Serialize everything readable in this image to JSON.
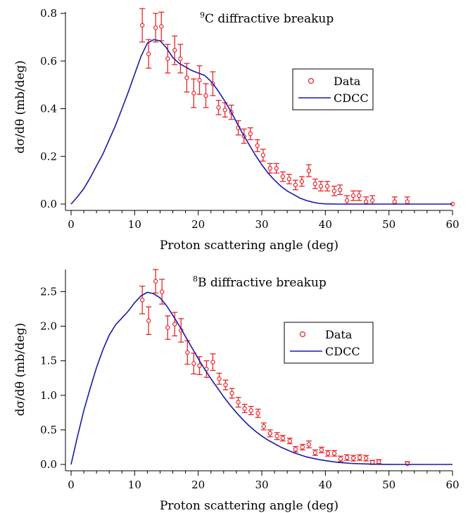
{
  "chart_data": [
    {
      "type": "scatter",
      "title_sup": "9",
      "title": "C diffractive breakup",
      "xlabel": "Proton scattering angle (deg)",
      "ylabel": "dσ/dθ (mb/deg)",
      "xlim": [
        0,
        60
      ],
      "ylim": [
        0,
        0.8
      ],
      "x_ticks": [
        0,
        10,
        20,
        30,
        40,
        50,
        60
      ],
      "y_ticks": [
        0.0,
        0.2,
        0.4,
        0.6,
        0.8
      ],
      "y_tick_labels": [
        "0.0",
        "0.2",
        "0.4",
        "0.6",
        "0.8"
      ],
      "grid": false,
      "legend_position": "right",
      "series": [
        {
          "name": "Data",
          "style": "markers-with-errorbars",
          "color": "#e8262b",
          "points": [
            {
              "x": 11.2,
              "y": 0.75,
              "err": 0.07
            },
            {
              "x": 12.2,
              "y": 0.63,
              "err": 0.06
            },
            {
              "x": 13.3,
              "y": 0.74,
              "err": 0.06
            },
            {
              "x": 14.2,
              "y": 0.745,
              "err": 0.06
            },
            {
              "x": 15.2,
              "y": 0.61,
              "err": 0.06
            },
            {
              "x": 16.3,
              "y": 0.645,
              "err": 0.06
            },
            {
              "x": 17.2,
              "y": 0.61,
              "err": 0.06
            },
            {
              "x": 18.2,
              "y": 0.53,
              "err": 0.06
            },
            {
              "x": 19.3,
              "y": 0.465,
              "err": 0.06
            },
            {
              "x": 20.2,
              "y": 0.52,
              "err": 0.06
            },
            {
              "x": 21.2,
              "y": 0.455,
              "err": 0.05
            },
            {
              "x": 22.3,
              "y": 0.505,
              "err": 0.05
            },
            {
              "x": 23.2,
              "y": 0.405,
              "err": 0.03
            },
            {
              "x": 24.2,
              "y": 0.395,
              "err": 0.03
            },
            {
              "x": 25.2,
              "y": 0.385,
              "err": 0.03
            },
            {
              "x": 26.3,
              "y": 0.32,
              "err": 0.03
            },
            {
              "x": 27.2,
              "y": 0.285,
              "err": 0.03
            },
            {
              "x": 28.2,
              "y": 0.295,
              "err": 0.025
            },
            {
              "x": 29.3,
              "y": 0.245,
              "err": 0.025
            },
            {
              "x": 30.2,
              "y": 0.205,
              "err": 0.025
            },
            {
              "x": 31.3,
              "y": 0.15,
              "err": 0.02
            },
            {
              "x": 32.3,
              "y": 0.15,
              "err": 0.02
            },
            {
              "x": 33.3,
              "y": 0.115,
              "err": 0.02
            },
            {
              "x": 34.3,
              "y": 0.105,
              "err": 0.02
            },
            {
              "x": 35.3,
              "y": 0.08,
              "err": 0.02
            },
            {
              "x": 36.3,
              "y": 0.095,
              "err": 0.02
            },
            {
              "x": 37.4,
              "y": 0.14,
              "err": 0.025
            },
            {
              "x": 38.4,
              "y": 0.085,
              "err": 0.02
            },
            {
              "x": 39.3,
              "y": 0.075,
              "err": 0.02
            },
            {
              "x": 40.3,
              "y": 0.075,
              "err": 0.02
            },
            {
              "x": 41.4,
              "y": 0.055,
              "err": 0.02
            },
            {
              "x": 42.3,
              "y": 0.06,
              "err": 0.02
            },
            {
              "x": 43.4,
              "y": 0.015,
              "err": 0.02
            },
            {
              "x": 44.4,
              "y": 0.035,
              "err": 0.02
            },
            {
              "x": 45.3,
              "y": 0.035,
              "err": 0.02
            },
            {
              "x": 46.4,
              "y": 0.01,
              "err": 0.02
            },
            {
              "x": 47.4,
              "y": 0.015,
              "err": 0.02
            },
            {
              "x": 50.9,
              "y": 0.01,
              "err": 0.02
            },
            {
              "x": 52.9,
              "y": 0.01,
              "err": 0.02
            },
            {
              "x": 60.0,
              "y": 0.0,
              "err": 0.0
            }
          ]
        },
        {
          "name": "CDCC",
          "style": "line",
          "color": "#1a1aa8",
          "points": [
            {
              "x": 0,
              "y": 0.0
            },
            {
              "x": 1,
              "y": 0.03
            },
            {
              "x": 2,
              "y": 0.065
            },
            {
              "x": 3,
              "y": 0.11
            },
            {
              "x": 4,
              "y": 0.16
            },
            {
              "x": 5,
              "y": 0.21
            },
            {
              "x": 6,
              "y": 0.27
            },
            {
              "x": 7,
              "y": 0.33
            },
            {
              "x": 8,
              "y": 0.4
            },
            {
              "x": 9,
              "y": 0.47
            },
            {
              "x": 10,
              "y": 0.545
            },
            {
              "x": 11,
              "y": 0.62
            },
            {
              "x": 12,
              "y": 0.675
            },
            {
              "x": 13,
              "y": 0.69
            },
            {
              "x": 14,
              "y": 0.685
            },
            {
              "x": 15,
              "y": 0.655
            },
            {
              "x": 16,
              "y": 0.615
            },
            {
              "x": 17,
              "y": 0.59
            },
            {
              "x": 18,
              "y": 0.575
            },
            {
              "x": 19,
              "y": 0.56
            },
            {
              "x": 20,
              "y": 0.55
            },
            {
              "x": 21,
              "y": 0.54
            },
            {
              "x": 22,
              "y": 0.515
            },
            {
              "x": 23,
              "y": 0.48
            },
            {
              "x": 24,
              "y": 0.44
            },
            {
              "x": 25,
              "y": 0.395
            },
            {
              "x": 26,
              "y": 0.345
            },
            {
              "x": 27,
              "y": 0.295
            },
            {
              "x": 28,
              "y": 0.25
            },
            {
              "x": 29,
              "y": 0.205
            },
            {
              "x": 30,
              "y": 0.165
            },
            {
              "x": 31,
              "y": 0.13
            },
            {
              "x": 32,
              "y": 0.1
            },
            {
              "x": 33,
              "y": 0.075
            },
            {
              "x": 34,
              "y": 0.055
            },
            {
              "x": 35,
              "y": 0.04
            },
            {
              "x": 36,
              "y": 0.025
            },
            {
              "x": 37,
              "y": 0.015
            },
            {
              "x": 38,
              "y": 0.008
            },
            {
              "x": 39,
              "y": 0.003
            },
            {
              "x": 40,
              "y": 0.001
            },
            {
              "x": 42,
              "y": 0.0
            },
            {
              "x": 60,
              "y": 0.0
            }
          ]
        }
      ]
    },
    {
      "type": "scatter",
      "title_sup": "8",
      "title": "B diffractive breakup",
      "xlabel": "Proton scattering angle (deg)",
      "ylabel": "dσ/dθ (mb/deg)",
      "xlim": [
        0,
        60
      ],
      "ylim": [
        0,
        2.8
      ],
      "x_ticks": [
        0,
        10,
        20,
        30,
        40,
        50,
        60
      ],
      "y_ticks": [
        0.0,
        0.5,
        1.0,
        1.5,
        2.0,
        2.5
      ],
      "y_tick_labels": [
        "0.0",
        "0.5",
        "1.0",
        "1.5",
        "2.0",
        "2.5"
      ],
      "grid": false,
      "legend_position": "right",
      "series": [
        {
          "name": "Data",
          "style": "markers-with-errorbars",
          "color": "#e8262b",
          "points": [
            {
              "x": 11.2,
              "y": 2.38,
              "err": 0.2
            },
            {
              "x": 12.2,
              "y": 2.08,
              "err": 0.2
            },
            {
              "x": 13.3,
              "y": 2.65,
              "err": 0.17
            },
            {
              "x": 14.3,
              "y": 2.5,
              "err": 0.18
            },
            {
              "x": 15.2,
              "y": 1.98,
              "err": 0.17
            },
            {
              "x": 16.3,
              "y": 2.03,
              "err": 0.17
            },
            {
              "x": 17.3,
              "y": 1.94,
              "err": 0.17
            },
            {
              "x": 18.3,
              "y": 1.62,
              "err": 0.17
            },
            {
              "x": 19.3,
              "y": 1.46,
              "err": 0.15
            },
            {
              "x": 20.2,
              "y": 1.43,
              "err": 0.13
            },
            {
              "x": 21.3,
              "y": 1.38,
              "err": 0.12
            },
            {
              "x": 22.3,
              "y": 1.48,
              "err": 0.12
            },
            {
              "x": 23.3,
              "y": 1.24,
              "err": 0.08
            },
            {
              "x": 24.3,
              "y": 1.15,
              "err": 0.07
            },
            {
              "x": 25.3,
              "y": 1.03,
              "err": 0.07
            },
            {
              "x": 26.3,
              "y": 0.9,
              "err": 0.07
            },
            {
              "x": 27.3,
              "y": 0.81,
              "err": 0.06
            },
            {
              "x": 28.3,
              "y": 0.78,
              "err": 0.06
            },
            {
              "x": 29.4,
              "y": 0.74,
              "err": 0.06
            },
            {
              "x": 30.3,
              "y": 0.55,
              "err": 0.05
            },
            {
              "x": 31.3,
              "y": 0.45,
              "err": 0.05
            },
            {
              "x": 32.4,
              "y": 0.41,
              "err": 0.05
            },
            {
              "x": 33.3,
              "y": 0.38,
              "err": 0.04
            },
            {
              "x": 34.4,
              "y": 0.34,
              "err": 0.04
            },
            {
              "x": 35.3,
              "y": 0.22,
              "err": 0.04
            },
            {
              "x": 36.4,
              "y": 0.25,
              "err": 0.04
            },
            {
              "x": 37.4,
              "y": 0.29,
              "err": 0.05
            },
            {
              "x": 38.4,
              "y": 0.17,
              "err": 0.04
            },
            {
              "x": 39.4,
              "y": 0.21,
              "err": 0.04
            },
            {
              "x": 40.4,
              "y": 0.16,
              "err": 0.04
            },
            {
              "x": 41.4,
              "y": 0.16,
              "err": 0.04
            },
            {
              "x": 42.4,
              "y": 0.08,
              "err": 0.04
            },
            {
              "x": 43.4,
              "y": 0.1,
              "err": 0.04
            },
            {
              "x": 44.4,
              "y": 0.09,
              "err": 0.04
            },
            {
              "x": 45.4,
              "y": 0.1,
              "err": 0.04
            },
            {
              "x": 46.4,
              "y": 0.09,
              "err": 0.04
            },
            {
              "x": 47.4,
              "y": 0.03,
              "err": 0.03
            },
            {
              "x": 48.4,
              "y": 0.04,
              "err": 0.03
            },
            {
              "x": 52.9,
              "y": 0.01,
              "err": 0.03
            }
          ]
        },
        {
          "name": "CDCC",
          "style": "line",
          "color": "#1a1aa8",
          "points": [
            {
              "x": 0,
              "y": 0.0
            },
            {
              "x": 1,
              "y": 0.4
            },
            {
              "x": 2,
              "y": 0.78
            },
            {
              "x": 3,
              "y": 1.1
            },
            {
              "x": 4,
              "y": 1.4
            },
            {
              "x": 5,
              "y": 1.66
            },
            {
              "x": 6,
              "y": 1.87
            },
            {
              "x": 7,
              "y": 2.02
            },
            {
              "x": 8,
              "y": 2.12
            },
            {
              "x": 9,
              "y": 2.22
            },
            {
              "x": 10,
              "y": 2.34
            },
            {
              "x": 11,
              "y": 2.44
            },
            {
              "x": 12,
              "y": 2.49
            },
            {
              "x": 13,
              "y": 2.47
            },
            {
              "x": 14,
              "y": 2.41
            },
            {
              "x": 15,
              "y": 2.3
            },
            {
              "x": 16,
              "y": 2.16
            },
            {
              "x": 17,
              "y": 2.01
            },
            {
              "x": 18,
              "y": 1.85
            },
            {
              "x": 19,
              "y": 1.69
            },
            {
              "x": 20,
              "y": 1.53
            },
            {
              "x": 21,
              "y": 1.38
            },
            {
              "x": 22,
              "y": 1.24
            },
            {
              "x": 23,
              "y": 1.11
            },
            {
              "x": 24,
              "y": 0.98
            },
            {
              "x": 25,
              "y": 0.86
            },
            {
              "x": 26,
              "y": 0.75
            },
            {
              "x": 27,
              "y": 0.65
            },
            {
              "x": 28,
              "y": 0.56
            },
            {
              "x": 29,
              "y": 0.48
            },
            {
              "x": 30,
              "y": 0.41
            },
            {
              "x": 31,
              "y": 0.35
            },
            {
              "x": 32,
              "y": 0.3
            },
            {
              "x": 33,
              "y": 0.25
            },
            {
              "x": 34,
              "y": 0.21
            },
            {
              "x": 35,
              "y": 0.17
            },
            {
              "x": 36,
              "y": 0.14
            },
            {
              "x": 37,
              "y": 0.11
            },
            {
              "x": 38,
              "y": 0.09
            },
            {
              "x": 39,
              "y": 0.07
            },
            {
              "x": 40,
              "y": 0.055
            },
            {
              "x": 42,
              "y": 0.03
            },
            {
              "x": 44,
              "y": 0.015
            },
            {
              "x": 46,
              "y": 0.008
            },
            {
              "x": 48,
              "y": 0.003
            },
            {
              "x": 50,
              "y": 0.001
            },
            {
              "x": 52,
              "y": 0.0
            },
            {
              "x": 60,
              "y": 0.0
            }
          ]
        }
      ]
    }
  ]
}
